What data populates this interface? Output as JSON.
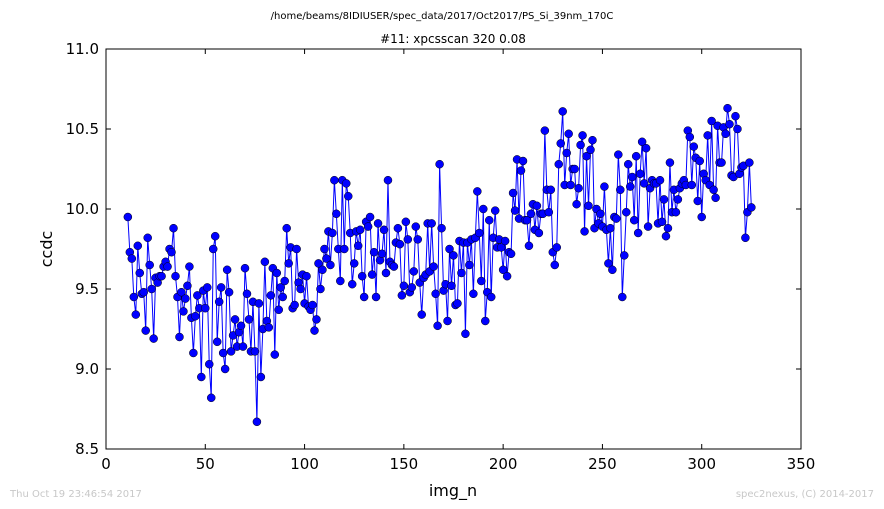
{
  "chart_data": {
    "type": "line",
    "suptitle": "/home/beams/8IDIUSER/spec_data/2017/Oct2017/PS_Si_39nm_170C",
    "title": "#11: xpcsscan 320 0.08",
    "xlabel": "img_n",
    "ylabel": "ccdc",
    "xlim": [
      0,
      350
    ],
    "ylim": [
      8.5,
      11.0
    ],
    "xticks": [
      "0",
      "50",
      "100",
      "150",
      "200",
      "250",
      "300",
      "350"
    ],
    "yticks": [
      "8.5",
      "9.0",
      "9.5",
      "10.0",
      "10.5",
      "11.0"
    ],
    "grid": false,
    "marker": "circle",
    "series": [
      {
        "color": "#0000ff",
        "x_start": 11,
        "x_step": 1,
        "values": [
          9.95,
          9.73,
          9.69,
          9.45,
          9.34,
          9.77,
          9.6,
          9.47,
          9.48,
          9.24,
          9.82,
          9.65,
          9.5,
          9.19,
          9.57,
          9.54,
          9.58,
          9.58,
          9.64,
          9.67,
          9.64,
          9.75,
          9.73,
          9.88,
          9.58,
          9.45,
          9.2,
          9.48,
          9.36,
          9.44,
          9.52,
          9.64,
          9.32,
          9.1,
          9.33,
          9.46,
          9.38,
          8.95,
          9.49,
          9.38,
          9.51,
          9.03,
          8.82,
          9.75,
          9.83,
          9.17,
          9.42,
          9.51,
          9.1,
          9.0,
          9.62,
          9.48,
          9.11,
          9.21,
          9.31,
          9.14,
          9.23,
          9.27,
          9.14,
          9.63,
          9.47,
          9.31,
          9.11,
          9.42,
          9.11,
          8.67,
          9.41,
          8.95,
          9.25,
          9.67,
          9.3,
          9.26,
          9.46,
          9.63,
          9.09,
          9.6,
          9.37,
          9.51,
          9.45,
          9.55,
          9.88,
          9.66,
          9.76,
          9.38,
          9.4,
          9.75,
          9.54,
          9.5,
          9.59,
          9.41,
          9.58,
          9.39,
          9.37,
          9.4,
          9.24,
          9.31,
          9.66,
          9.5,
          9.62,
          9.75,
          9.69,
          9.86,
          9.65,
          9.85,
          10.18,
          9.97,
          9.75,
          9.55,
          10.18,
          9.75,
          10.16,
          10.08,
          9.85,
          9.53,
          9.66,
          9.86,
          9.77,
          9.87,
          9.58,
          9.45,
          9.92,
          9.89,
          9.95,
          9.59,
          9.73,
          9.45,
          9.91,
          9.68,
          9.72,
          9.87,
          9.6,
          10.18,
          9.67,
          9.65,
          9.64,
          9.79,
          9.88,
          9.78,
          9.46,
          9.52,
          9.92,
          9.81,
          9.48,
          9.51,
          9.61,
          9.89,
          9.81,
          9.54,
          9.34,
          9.57,
          9.59,
          9.91,
          9.61,
          9.91,
          9.64,
          9.47,
          9.27,
          10.28,
          9.88,
          9.49,
          9.53,
          9.3,
          9.75,
          9.52,
          9.71,
          9.4,
          9.41,
          9.8,
          9.6,
          9.79,
          9.22,
          9.79,
          9.65,
          9.81,
          9.47,
          9.82,
          10.11,
          9.85,
          9.55,
          10.0,
          9.3,
          9.48,
          9.93,
          9.45,
          9.82,
          9.99,
          9.76,
          9.81,
          9.76,
          9.62,
          9.8,
          9.58,
          9.73,
          9.72,
          10.1,
          9.99,
          10.31,
          9.94,
          10.24,
          10.3,
          9.93,
          9.93,
          9.77,
          9.97,
          10.03,
          9.87,
          10.02,
          9.85,
          9.97,
          9.97,
          10.49,
          10.12,
          9.98,
          10.12,
          9.73,
          9.65,
          9.76,
          10.28,
          10.41,
          10.61,
          10.15,
          10.35,
          10.47,
          10.15,
          10.25,
          10.25,
          10.03,
          10.13,
          10.4,
          10.46,
          9.86,
          10.33,
          10.02,
          10.37,
          10.43,
          9.88,
          10.0,
          9.91,
          9.97,
          9.89,
          10.14,
          9.87,
          9.66,
          9.88,
          9.62,
          9.95,
          9.94,
          10.34,
          10.12,
          9.45,
          9.71,
          9.98,
          10.28,
          10.14,
          10.2,
          9.93,
          10.33,
          9.85,
          10.22,
          10.42,
          10.16,
          10.38,
          9.89,
          10.13,
          10.18,
          10.16,
          10.16,
          9.91,
          10.18,
          9.92,
          10.06,
          9.83,
          9.88,
          10.29,
          9.98,
          10.12,
          9.98,
          10.06,
          10.13,
          10.16,
          10.18,
          10.15,
          10.49,
          10.45,
          10.15,
          10.39,
          10.32,
          10.05,
          10.3,
          9.95,
          10.22,
          10.18,
          10.46,
          10.15,
          10.55,
          10.12,
          10.07,
          10.52,
          10.29,
          10.29,
          10.51,
          10.47,
          10.63,
          10.53,
          10.21,
          10.2,
          10.58,
          10.5,
          10.22,
          10.26,
          10.27,
          9.82,
          9.98,
          10.29,
          10.01
        ]
      }
    ]
  },
  "footer": {
    "timestamp": "Thu Oct 19 23:46:54 2017",
    "credit": "spec2nexus, (C) 2014-2017"
  }
}
